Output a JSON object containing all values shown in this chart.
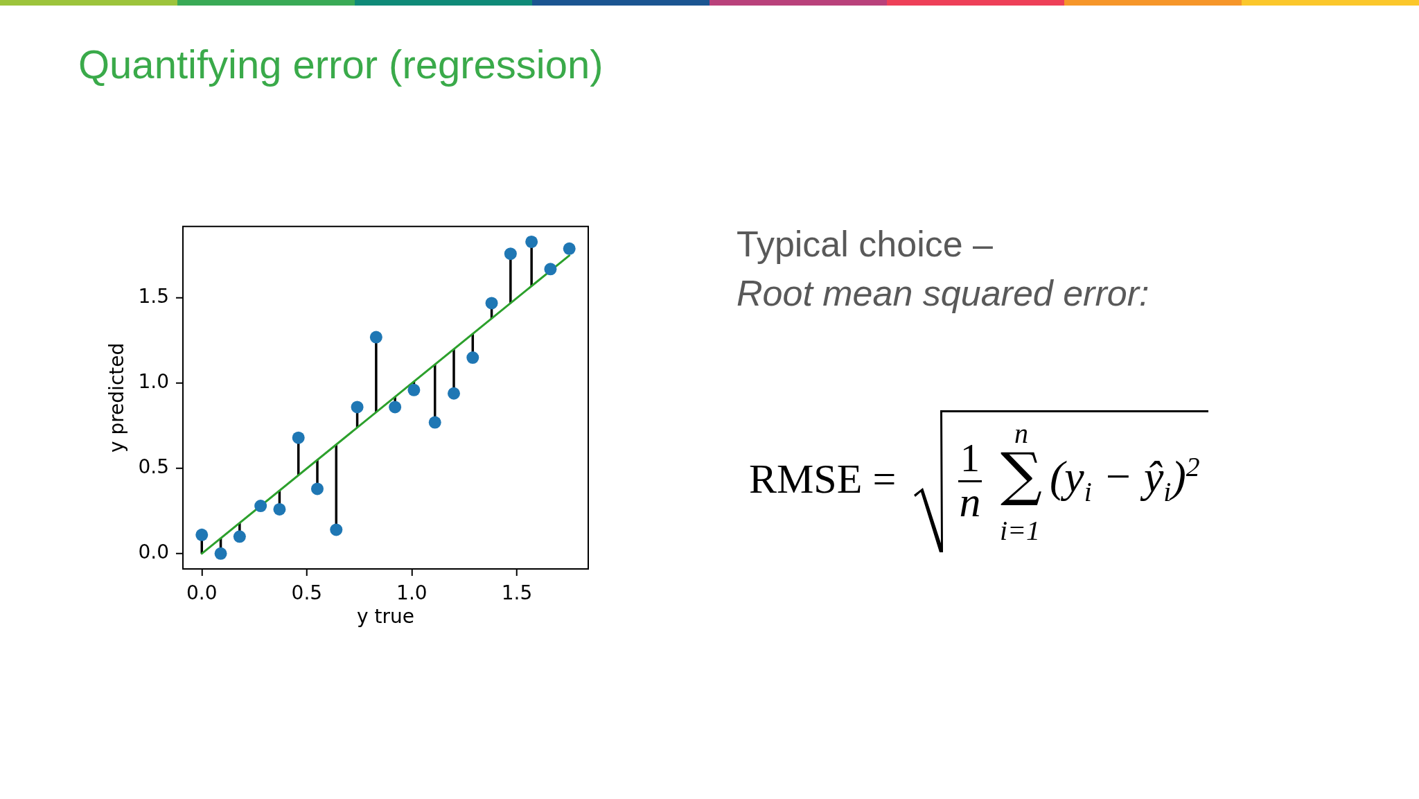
{
  "chart_data": {
    "type": "scatter",
    "title": "Quantifying error (regression)",
    "xlabel": "y true",
    "ylabel": "y predicted",
    "x": [
      0,
      0.09,
      0.18,
      0.28,
      0.37,
      0.46,
      0.55,
      0.64,
      0.74,
      0.83,
      0.92,
      1.01,
      1.11,
      1.2,
      1.29,
      1.38,
      1.47,
      1.57,
      1.66,
      1.75
    ],
    "series": [
      {
        "type": "scatter",
        "color": "#1f77b4",
        "marker": "circle",
        "values": [
          0.11,
          0,
          0.1,
          0.28,
          0.26,
          0.68,
          0.38,
          0.14,
          0.86,
          1.27,
          0.86,
          0.96,
          0.77,
          0.94,
          1.15,
          1.47,
          1.76,
          1.83,
          1.67,
          1.79
        ],
        "errors": [
          [
            0,
            0.11
          ],
          [
            0,
            0.09
          ],
          [
            0.1,
            0.18
          ],
          null,
          [
            0.26,
            0.37
          ],
          [
            0.46,
            0.68
          ],
          [
            0.38,
            0.55
          ],
          [
            0.14,
            0.64
          ],
          [
            0.74,
            0.86
          ],
          [
            0.83,
            1.27
          ],
          [
            0.86,
            0.92
          ],
          [
            0.96,
            1.01
          ],
          [
            0.77,
            1.11
          ],
          [
            0.94,
            1.2
          ],
          [
            1.15,
            1.29
          ],
          [
            1.38,
            1.47
          ],
          [
            1.47,
            1.76
          ],
          [
            1.57,
            1.83
          ],
          null,
          null
        ]
      },
      {
        "type": "line",
        "color": "#2ca02c",
        "marker": "none",
        "x": [
          0,
          1.75
        ],
        "values": [
          0,
          1.75
        ]
      }
    ],
    "xlim": [
      -0.09,
      1.84
    ],
    "ylim": [
      -0.09,
      1.92
    ],
    "xticks": [
      {
        "value": 0,
        "label": "0.0"
      },
      {
        "value": 0.5,
        "label": "0.5"
      },
      {
        "value": 1,
        "label": "1.0"
      },
      {
        "value": 1.5,
        "label": "1.5"
      }
    ],
    "yticks": [
      {
        "value": 0,
        "label": "0.0"
      },
      {
        "value": 0.5,
        "label": "0.5"
      },
      {
        "value": 1,
        "label": "1.0"
      },
      {
        "value": 1.5,
        "label": "1.5"
      }
    ],
    "grid": false,
    "legend": false,
    "annotations": [
      "Typical choice –",
      "Root mean squared error:",
      "RMSE =",
      "1",
      "n",
      "∑",
      "n",
      "i=1",
      "(y$_{i}$ − ŷ$_{i}$)$^{2}$"
    ]
  }
}
